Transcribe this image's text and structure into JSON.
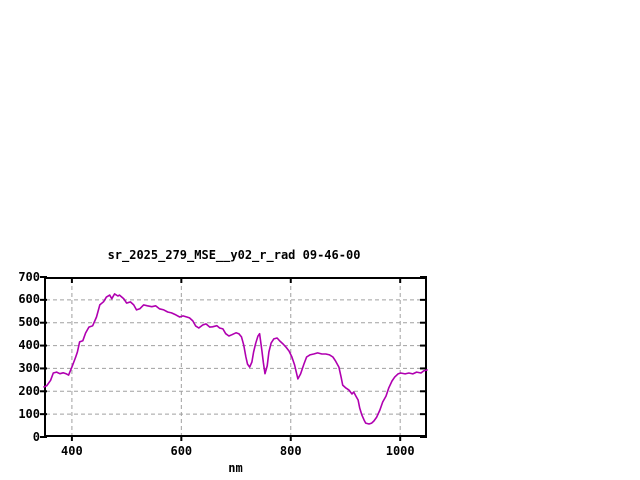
{
  "page": {
    "background": "#ffffff"
  },
  "chart_data": {
    "type": "line",
    "title": "sr_2025_279_MSE__y02_r_rad 09-46-00",
    "xlabel": "nm",
    "ylabel": "",
    "xlim": [
      349,
      1049
    ],
    "ylim": [
      0,
      700
    ],
    "x_ticks": [
      400,
      600,
      800,
      1000
    ],
    "y_ticks": [
      0,
      100,
      200,
      300,
      400,
      500,
      600,
      700
    ],
    "grid_x": [
      400,
      600,
      800,
      1000
    ],
    "grid_y": [
      100,
      200,
      300,
      400,
      500,
      600
    ],
    "grid": true,
    "legend": "none",
    "colors": {
      "line": "#b000b0",
      "grid": "#a0a0a0",
      "axis": "#000000",
      "text": "#000000"
    },
    "series": [
      {
        "name": "sr_2025_279_MSE__y02_r_rad",
        "color": "#b000b0",
        "points": [
          [
            349,
            219
          ],
          [
            354,
            224
          ],
          [
            361,
            248
          ],
          [
            366,
            280
          ],
          [
            372,
            284
          ],
          [
            378,
            277
          ],
          [
            384,
            281
          ],
          [
            390,
            276
          ],
          [
            394,
            271
          ],
          [
            400,
            306
          ],
          [
            403,
            324
          ],
          [
            407,
            350
          ],
          [
            410,
            372
          ],
          [
            414,
            416
          ],
          [
            420,
            421
          ],
          [
            425,
            455
          ],
          [
            431,
            481
          ],
          [
            438,
            487
          ],
          [
            445,
            525
          ],
          [
            451,
            578
          ],
          [
            458,
            592
          ],
          [
            463,
            612
          ],
          [
            469,
            621
          ],
          [
            473,
            605
          ],
          [
            478,
            626
          ],
          [
            484,
            617
          ],
          [
            487,
            621
          ],
          [
            495,
            604
          ],
          [
            500,
            586
          ],
          [
            507,
            591
          ],
          [
            513,
            578
          ],
          [
            518,
            556
          ],
          [
            524,
            561
          ],
          [
            531,
            578
          ],
          [
            538,
            574
          ],
          [
            546,
            570
          ],
          [
            553,
            574
          ],
          [
            560,
            561
          ],
          [
            568,
            556
          ],
          [
            575,
            547
          ],
          [
            582,
            543
          ],
          [
            590,
            534
          ],
          [
            597,
            525
          ],
          [
            603,
            530
          ],
          [
            610,
            525
          ],
          [
            615,
            521
          ],
          [
            621,
            508
          ],
          [
            626,
            486
          ],
          [
            632,
            477
          ],
          [
            639,
            490
          ],
          [
            645,
            495
          ],
          [
            652,
            481
          ],
          [
            657,
            482
          ],
          [
            665,
            487
          ],
          [
            670,
            477
          ],
          [
            676,
            473
          ],
          [
            681,
            452
          ],
          [
            687,
            442
          ],
          [
            692,
            447
          ],
          [
            700,
            456
          ],
          [
            705,
            452
          ],
          [
            710,
            438
          ],
          [
            714,
            403
          ],
          [
            718,
            350
          ],
          [
            721,
            319
          ],
          [
            725,
            306
          ],
          [
            729,
            328
          ],
          [
            732,
            372
          ],
          [
            736,
            410
          ],
          [
            740,
            441
          ],
          [
            743,
            452
          ],
          [
            747,
            381
          ],
          [
            750,
            324
          ],
          [
            753,
            277
          ],
          [
            757,
            311
          ],
          [
            760,
            372
          ],
          [
            764,
            411
          ],
          [
            769,
            429
          ],
          [
            775,
            433
          ],
          [
            780,
            420
          ],
          [
            786,
            407
          ],
          [
            791,
            394
          ],
          [
            797,
            376
          ],
          [
            802,
            350
          ],
          [
            807,
            315
          ],
          [
            813,
            254
          ],
          [
            818,
            276
          ],
          [
            824,
            319
          ],
          [
            829,
            350
          ],
          [
            835,
            359
          ],
          [
            842,
            363
          ],
          [
            849,
            368
          ],
          [
            857,
            363
          ],
          [
            864,
            363
          ],
          [
            871,
            359
          ],
          [
            877,
            350
          ],
          [
            882,
            332
          ],
          [
            888,
            306
          ],
          [
            892,
            262
          ],
          [
            895,
            227
          ],
          [
            901,
            214
          ],
          [
            906,
            206
          ],
          [
            912,
            188
          ],
          [
            915,
            197
          ],
          [
            919,
            179
          ],
          [
            923,
            162
          ],
          [
            926,
            127
          ],
          [
            930,
            96
          ],
          [
            934,
            74
          ],
          [
            937,
            61
          ],
          [
            943,
            57
          ],
          [
            948,
            61
          ],
          [
            952,
            70
          ],
          [
            957,
            87
          ],
          [
            963,
            118
          ],
          [
            968,
            153
          ],
          [
            974,
            179
          ],
          [
            979,
            214
          ],
          [
            985,
            245
          ],
          [
            990,
            262
          ],
          [
            996,
            276
          ],
          [
            1001,
            280
          ],
          [
            1009,
            276
          ],
          [
            1016,
            280
          ],
          [
            1023,
            276
          ],
          [
            1030,
            284
          ],
          [
            1038,
            280
          ],
          [
            1043,
            289
          ],
          [
            1049,
            293
          ]
        ]
      }
    ]
  }
}
